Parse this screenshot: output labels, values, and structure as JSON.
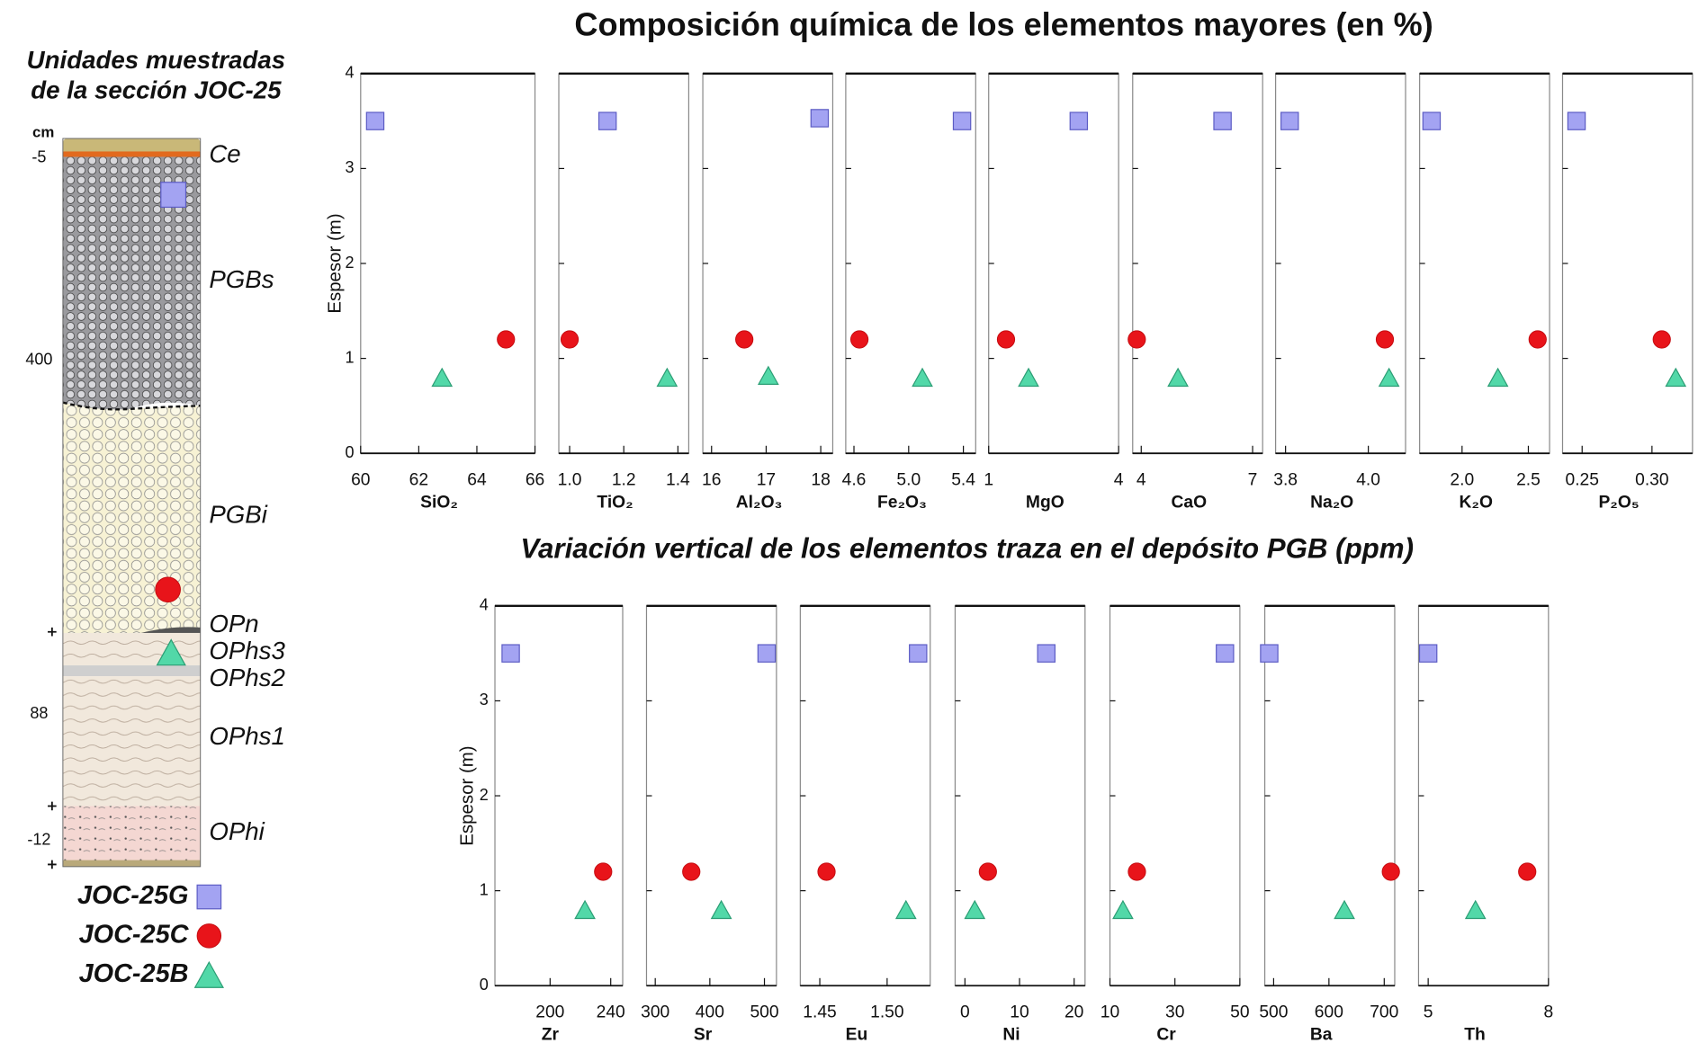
{
  "column": {
    "title": [
      "Unidades muestradas",
      "de la sección JOC-25"
    ],
    "unit": "cm",
    "depth_labels": [
      -5,
      400,
      88,
      -12
    ],
    "units": [
      "Ce",
      "PGBs",
      "PGBi",
      "OPn",
      "OPhs3",
      "OPhs2",
      "OPhs1",
      "OPhi"
    ]
  },
  "samples": [
    {
      "name": "JOC-25G",
      "color": "#a3a3f2",
      "marker": "square"
    },
    {
      "name": "JOC-25C",
      "color": "#e8141a",
      "marker": "circle"
    },
    {
      "name": "JOC-25B",
      "color": "#52d8a8",
      "marker": "triangle"
    }
  ],
  "chart_data": [
    {
      "type": "scatter",
      "title": "Composición química de los elementos mayores (en %)",
      "ylabel": "Espesor (m)",
      "show_ytick_labels": true,
      "xlabel": "SiO₂",
      "xlim": [
        60,
        66
      ],
      "xticks": [
        60,
        62,
        64,
        66
      ],
      "ylim": [
        0,
        4
      ],
      "yticks": [
        0,
        1,
        2,
        3,
        4
      ],
      "x": [
        60.5,
        65.0,
        62.8
      ],
      "y": [
        3.5,
        1.2,
        0.8
      ]
    },
    {
      "type": "scatter",
      "show_ytick_labels": false,
      "xlabel": "TiO₂",
      "xlim": [
        0.96,
        1.44
      ],
      "xticks": [
        {
          "value": 1,
          "label": "1.0"
        },
        1.2,
        1.4
      ],
      "ylim": [
        0,
        4
      ],
      "yticks": [
        0,
        1,
        2,
        3,
        4
      ],
      "x": [
        1.14,
        1.0,
        1.36
      ],
      "y": [
        3.5,
        1.2,
        0.8
      ]
    },
    {
      "type": "scatter",
      "show_ytick_labels": false,
      "xlabel": "Al₂O₃",
      "xlim": [
        15.84,
        18.22
      ],
      "xticks": [
        16,
        17,
        18
      ],
      "ylim": [
        0,
        4
      ],
      "yticks": [
        0,
        1,
        2,
        3,
        4
      ],
      "x": [
        17.98,
        16.6,
        17.04
      ],
      "y": [
        3.53,
        1.2,
        0.82
      ]
    },
    {
      "type": "scatter",
      "show_ytick_labels": false,
      "xlabel": "Fe₂O₃",
      "xlim": [
        4.54,
        5.49
      ],
      "xticks": [
        4.6,
        {
          "value": 5,
          "label": "5.0"
        },
        5.4
      ],
      "ylim": [
        0,
        4
      ],
      "yticks": [
        0,
        1,
        2,
        3,
        4
      ],
      "x": [
        5.39,
        4.64,
        5.1
      ],
      "y": [
        3.5,
        1.2,
        0.8
      ]
    },
    {
      "type": "scatter",
      "show_ytick_labels": false,
      "xlabel": "MgO",
      "xlim": [
        1,
        4
      ],
      "xticks": [
        1,
        4
      ],
      "ylim": [
        0,
        4
      ],
      "yticks": [
        0,
        1,
        2,
        3,
        4
      ],
      "x": [
        3.08,
        1.4,
        1.92
      ],
      "y": [
        3.5,
        1.2,
        0.8
      ]
    },
    {
      "type": "scatter",
      "show_ytick_labels": false,
      "xlabel": "CaO",
      "xlim": [
        3.77,
        7.27
      ],
      "xticks": [
        4,
        7
      ],
      "ylim": [
        0,
        4
      ],
      "yticks": [
        0,
        1,
        2,
        3,
        4
      ],
      "x": [
        6.19,
        3.88,
        4.99
      ],
      "y": [
        3.5,
        1.2,
        0.8
      ]
    },
    {
      "type": "scatter",
      "show_ytick_labels": false,
      "xlabel": "Na₂O",
      "xlim": [
        3.776,
        4.09
      ],
      "xticks": [
        3.8,
        {
          "value": 4,
          "label": "4.0"
        }
      ],
      "ylim": [
        0,
        4
      ],
      "yticks": [
        0,
        1,
        2,
        3,
        4
      ],
      "x": [
        3.81,
        4.04,
        4.05
      ],
      "y": [
        3.5,
        1.2,
        0.8
      ]
    },
    {
      "type": "scatter",
      "show_ytick_labels": false,
      "xlabel": "K₂O",
      "xlim": [
        1.68,
        2.66
      ],
      "xticks": [
        {
          "value": 2,
          "label": "2.0"
        },
        2.5
      ],
      "ylim": [
        0,
        4
      ],
      "yticks": [
        0,
        1,
        2,
        3,
        4
      ],
      "x": [
        1.77,
        2.57,
        2.27
      ],
      "y": [
        3.5,
        1.2,
        0.8
      ]
    },
    {
      "type": "scatter",
      "show_ytick_labels": false,
      "xlabel": "P₂O₅",
      "xlim": [
        0.236,
        0.329
      ],
      "xticks": [
        0.25,
        {
          "value": 0.3,
          "label": "0.30"
        }
      ],
      "ylim": [
        0,
        4
      ],
      "yticks": [
        0,
        1,
        2,
        3,
        4
      ],
      "x": [
        0.246,
        0.307,
        0.317
      ],
      "y": [
        3.5,
        1.2,
        0.8
      ]
    },
    {
      "type": "scatter",
      "title": "Variación vertical de los elementos traza en el depósito PGB (ppm)",
      "ylabel": "Espesor (m)",
      "show_ytick_labels": true,
      "xlabel": "Zr",
      "xlim": [
        163.6,
        247.9
      ],
      "xticks": [
        200,
        240
      ],
      "ylim": [
        0,
        4
      ],
      "yticks": [
        0,
        1,
        2,
        3,
        4
      ],
      "x": [
        174,
        235,
        223
      ],
      "y": [
        3.5,
        1.2,
        0.8
      ]
    },
    {
      "type": "scatter",
      "show_ytick_labels": false,
      "xlabel": "Sr",
      "xlim": [
        284,
        522
      ],
      "xticks": [
        300,
        400,
        500
      ],
      "ylim": [
        0,
        4
      ],
      "yticks": [
        0,
        1,
        2,
        3,
        4
      ],
      "x": [
        504,
        366,
        421
      ],
      "y": [
        3.5,
        1.2,
        0.8
      ]
    },
    {
      "type": "scatter",
      "show_ytick_labels": false,
      "xlabel": "Eu",
      "xlim": [
        1.4355,
        1.532
      ],
      "xticks": [
        1.45,
        {
          "value": 1.5,
          "label": "1.50"
        }
      ],
      "ylim": [
        0,
        4
      ],
      "yticks": [
        0,
        1,
        2,
        3,
        4
      ],
      "x": [
        1.523,
        1.455,
        1.514
      ],
      "y": [
        3.5,
        1.2,
        0.8
      ]
    },
    {
      "type": "scatter",
      "show_ytick_labels": false,
      "xlabel": "Ni",
      "xlim": [
        -1.8,
        22
      ],
      "xticks": [
        0,
        10,
        20
      ],
      "ylim": [
        0,
        4
      ],
      "yticks": [
        0,
        1,
        2,
        3,
        4
      ],
      "x": [
        14.9,
        4.2,
        1.8
      ],
      "y": [
        3.5,
        1.2,
        0.8
      ]
    },
    {
      "type": "scatter",
      "show_ytick_labels": false,
      "xlabel": "Cr",
      "xlim": [
        10,
        50
      ],
      "xticks": [
        10,
        30,
        50
      ],
      "ylim": [
        0,
        4
      ],
      "yticks": [
        0,
        1,
        2,
        3,
        4
      ],
      "x": [
        45.4,
        18.3,
        14
      ],
      "y": [
        3.5,
        1.2,
        0.8
      ]
    },
    {
      "type": "scatter",
      "show_ytick_labels": false,
      "xlabel": "Ba",
      "xlim": [
        484,
        719
      ],
      "xticks": [
        500,
        600,
        700
      ],
      "ylim": [
        0,
        4
      ],
      "yticks": [
        0,
        1,
        2,
        3,
        4
      ],
      "x": [
        492,
        712,
        628
      ],
      "y": [
        3.5,
        1.2,
        0.8
      ]
    },
    {
      "type": "scatter",
      "show_ytick_labels": false,
      "xlabel": "Th",
      "xlim": [
        4.76,
        8
      ],
      "xticks": [
        5,
        8
      ],
      "ylim": [
        0,
        4
      ],
      "yticks": [
        0,
        1,
        2,
        3,
        4
      ],
      "x": [
        5.0,
        7.47,
        6.18
      ],
      "y": [
        3.5,
        1.2,
        0.8
      ]
    }
  ]
}
